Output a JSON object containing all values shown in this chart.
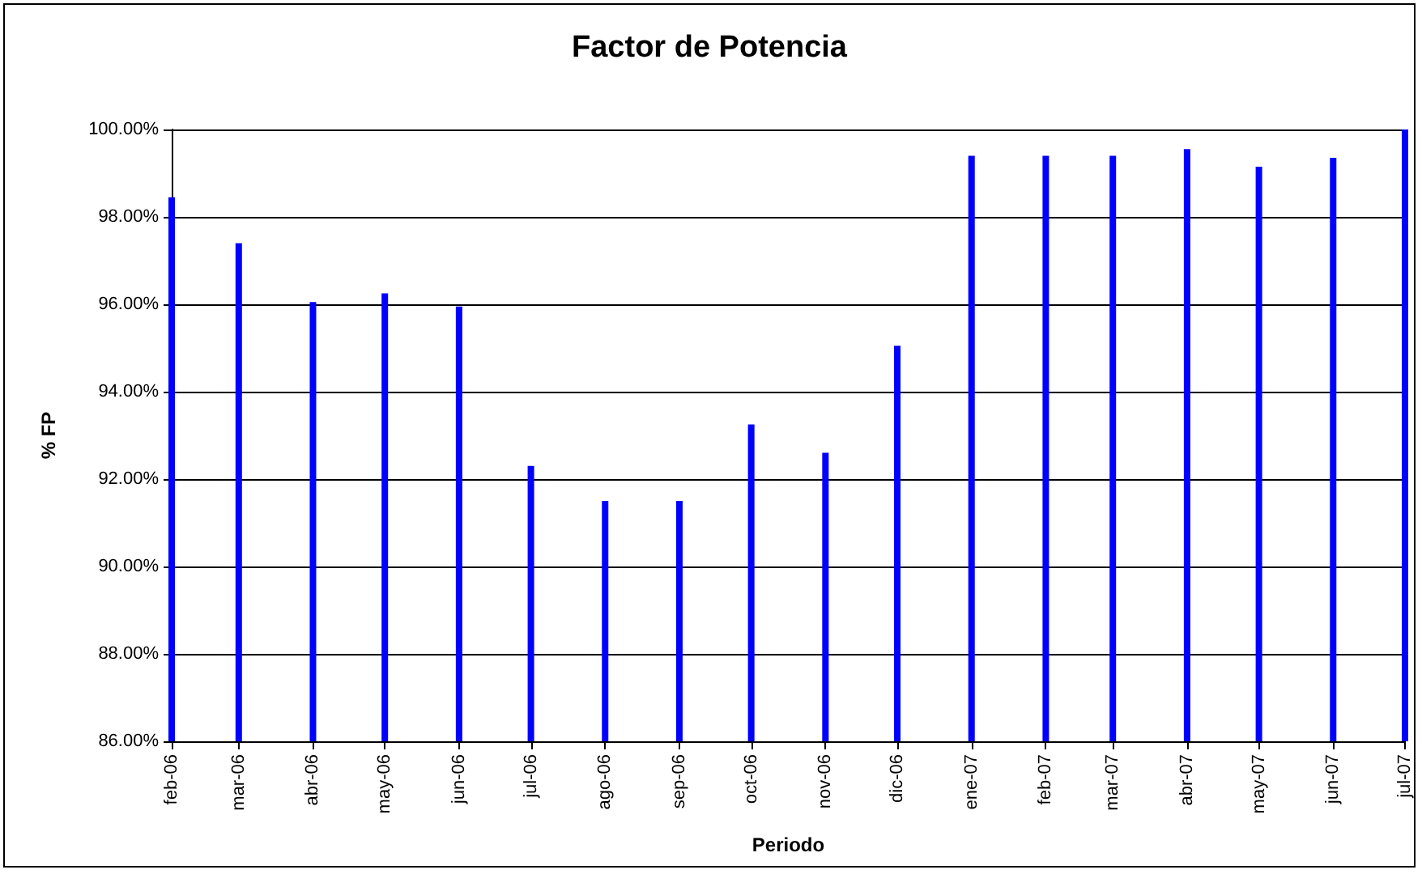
{
  "chart_data": {
    "type": "bar",
    "title": "Factor de Potencia",
    "xlabel": "Periodo",
    "ylabel": "% FP",
    "x": [
      "2006-02",
      "2006-03",
      "2006-04",
      "2006-05",
      "2006-06",
      "2006-07",
      "2006-08",
      "2006-09",
      "2006-10",
      "2006-11",
      "2006-12",
      "2007-01",
      "2007-02",
      "2007-03",
      "2007-04",
      "2007-05",
      "2007-06",
      "2007-07"
    ],
    "series": [
      {
        "color": "#0000ff",
        "values": [
          98.45,
          97.4,
          96.05,
          96.25,
          95.95,
          92.3,
          91.5,
          91.5,
          93.25,
          92.6,
          95.05,
          99.4,
          99.4,
          99.4,
          99.55,
          99.15,
          99.35,
          100.0
        ]
      }
    ],
    "xlim": [
      "2006-02",
      "2007-07"
    ],
    "xticks": [
      {
        "value": "2006-02",
        "label": "feb-06"
      },
      {
        "value": "2006-03",
        "label": "mar-06"
      },
      {
        "value": "2006-04",
        "label": "abr-06"
      },
      {
        "value": "2006-05",
        "label": "may-06"
      },
      {
        "value": "2006-06",
        "label": "jun-06"
      },
      {
        "value": "2006-07",
        "label": "jul-06"
      },
      {
        "value": "2006-08",
        "label": "ago-06"
      },
      {
        "value": "2006-09",
        "label": "sep-06"
      },
      {
        "value": "2006-10",
        "label": "oct-06"
      },
      {
        "value": "2006-11",
        "label": "nov-06"
      },
      {
        "value": "2006-12",
        "label": "dic-06"
      },
      {
        "value": "2007-01",
        "label": "ene-07"
      },
      {
        "value": "2007-02",
        "label": "feb-07"
      },
      {
        "value": "2007-03",
        "label": "mar-07"
      },
      {
        "value": "2007-04",
        "label": "abr-07"
      },
      {
        "value": "2007-05",
        "label": "may-07"
      },
      {
        "value": "2007-06",
        "label": "jun-07"
      },
      {
        "value": "2007-07",
        "label": "jul-07"
      }
    ],
    "ylim": [
      86,
      100
    ],
    "yticks": [
      {
        "value": 86,
        "label": "86.00%"
      },
      {
        "value": 88,
        "label": "88.00%"
      },
      {
        "value": 90,
        "label": "90.00%"
      },
      {
        "value": 92,
        "label": "92.00%"
      },
      {
        "value": 94,
        "label": "94.00%"
      },
      {
        "value": 96,
        "label": "96.00%"
      },
      {
        "value": 98,
        "label": "98.00%"
      },
      {
        "value": 100,
        "label": "100.00%"
      }
    ],
    "grid": "y"
  }
}
